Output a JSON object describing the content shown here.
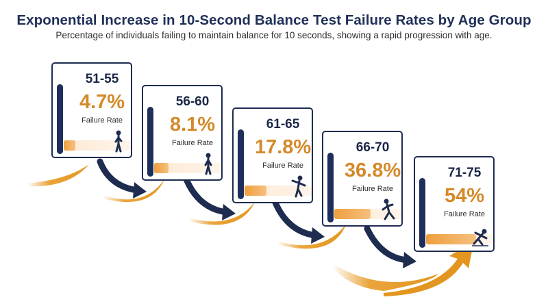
{
  "header": {
    "title": "Exponential Increase in 10-Second Balance Test Failure Rates by Age Group",
    "subtitle": "Percentage of individuals failing to maintain balance for 10 seconds, showing a rapid progression with age."
  },
  "rate_label": "Failure Rate",
  "colors": {
    "navy": "#1e2c50",
    "orange": "#e3961f",
    "rate_text": "#d48a2a"
  },
  "chart_data": {
    "type": "bar",
    "title": "Exponential Increase in 10-Second Balance Test Failure Rates by Age Group",
    "categories": [
      "51-55",
      "56-60",
      "61-65",
      "66-70",
      "71-75"
    ],
    "series": [
      {
        "values": [
          4.7,
          8.1,
          17.8,
          36.8,
          54
        ]
      }
    ]
  },
  "cards": [
    {
      "age": "51-55",
      "rate": "4.7%",
      "value": 4.7,
      "icon": "standing-person-icon"
    },
    {
      "age": "56-60",
      "rate": "8.1%",
      "value": 8.1,
      "icon": "standing-person-icon"
    },
    {
      "age": "61-65",
      "rate": "17.8%",
      "value": 17.8,
      "icon": "wobbling-person-icon"
    },
    {
      "age": "66-70",
      "rate": "36.8%",
      "value": 36.8,
      "icon": "stumbling-person-icon"
    },
    {
      "age": "71-75",
      "rate": "54%",
      "value": 54,
      "icon": "falling-person-icon"
    }
  ]
}
